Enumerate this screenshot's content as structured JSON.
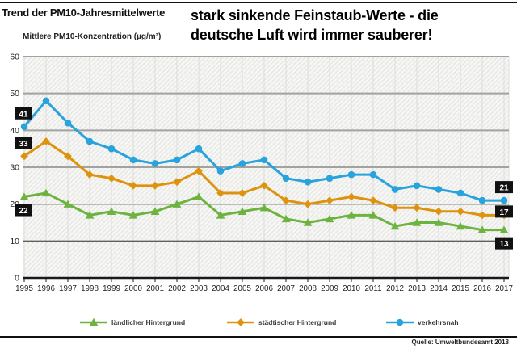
{
  "header": {
    "title": "Trend der PM10-Jahresmittelwerte",
    "headline_line1": "stark sinkende Feinstaub-Werte - die",
    "headline_line2": "deutsche Luft wird immer sauberer!"
  },
  "chart_data": {
    "type": "line",
    "title": "Trend der PM10-Jahresmittelwerte",
    "xlabel": "",
    "ylabel": "Mittlere PM10-Konzentration (µg/m³)",
    "ylim": [
      0,
      60
    ],
    "yticks": [
      0,
      10,
      20,
      30,
      40,
      50,
      60
    ],
    "grid": true,
    "legend_position": "bottom",
    "plot_background": "diagonal-hatch",
    "categories": [
      1995,
      1996,
      1997,
      1998,
      1999,
      2000,
      2001,
      2002,
      2003,
      2004,
      2005,
      2006,
      2007,
      2008,
      2009,
      2010,
      2011,
      2012,
      2013,
      2014,
      2015,
      2016,
      2017
    ],
    "series": [
      {
        "name": "ländlicher Hintergrund",
        "color": "#6cb33f",
        "marker": "triangle",
        "values": [
          22,
          23,
          20,
          17,
          18,
          17,
          18,
          20,
          22,
          17,
          18,
          19,
          16,
          15,
          16,
          17,
          17,
          14,
          15,
          15,
          14,
          13,
          13
        ]
      },
      {
        "name": "städtischer Hintergrund",
        "color": "#dd930d",
        "marker": "diamond",
        "values": [
          33,
          37,
          33,
          28,
          27,
          25,
          25,
          26,
          29,
          23,
          23,
          25,
          21,
          20,
          21,
          22,
          21,
          19,
          19,
          18,
          18,
          17,
          17
        ]
      },
      {
        "name": "verkehrsnah",
        "color": "#29a3dc",
        "marker": "circle",
        "values": [
          41,
          48,
          42,
          37,
          35,
          32,
          31,
          32,
          35,
          29,
          31,
          32,
          27,
          26,
          27,
          28,
          28,
          24,
          25,
          24,
          23,
          21,
          21
        ]
      }
    ],
    "annotations": [
      {
        "series": "verkehrsnah",
        "year": 1995,
        "label": "41",
        "side": "left",
        "valign": "above"
      },
      {
        "series": "städtischer Hintergrund",
        "year": 1995,
        "label": "33",
        "side": "left",
        "valign": "above"
      },
      {
        "series": "ländlicher Hintergrund",
        "year": 1995,
        "label": "22",
        "side": "left",
        "valign": "below"
      },
      {
        "series": "verkehrsnah",
        "year": 2017,
        "label": "21",
        "side": "right",
        "valign": "above"
      },
      {
        "series": "städtischer Hintergrund",
        "year": 2017,
        "label": "17",
        "side": "right",
        "valign": "mid"
      },
      {
        "series": "ländlicher Hintergrund",
        "year": 2017,
        "label": "13",
        "side": "right",
        "valign": "below"
      }
    ]
  },
  "colors": {
    "title_text": "#111111",
    "headline_text": "#000000",
    "label_box_bg": "#111111",
    "label_box_text": "#ffffff",
    "axis": "#1a1a1a",
    "grid_light": "#a2a2a0",
    "grid_dark": "#5f5f5f",
    "year_grid": "#dcdcda",
    "hatch_bg": "#f6f6f4",
    "hatch_line": "#e4e4e1",
    "rule": "#111111"
  },
  "footer": {
    "source": "Quelle: Umweltbundesamt 2018"
  }
}
